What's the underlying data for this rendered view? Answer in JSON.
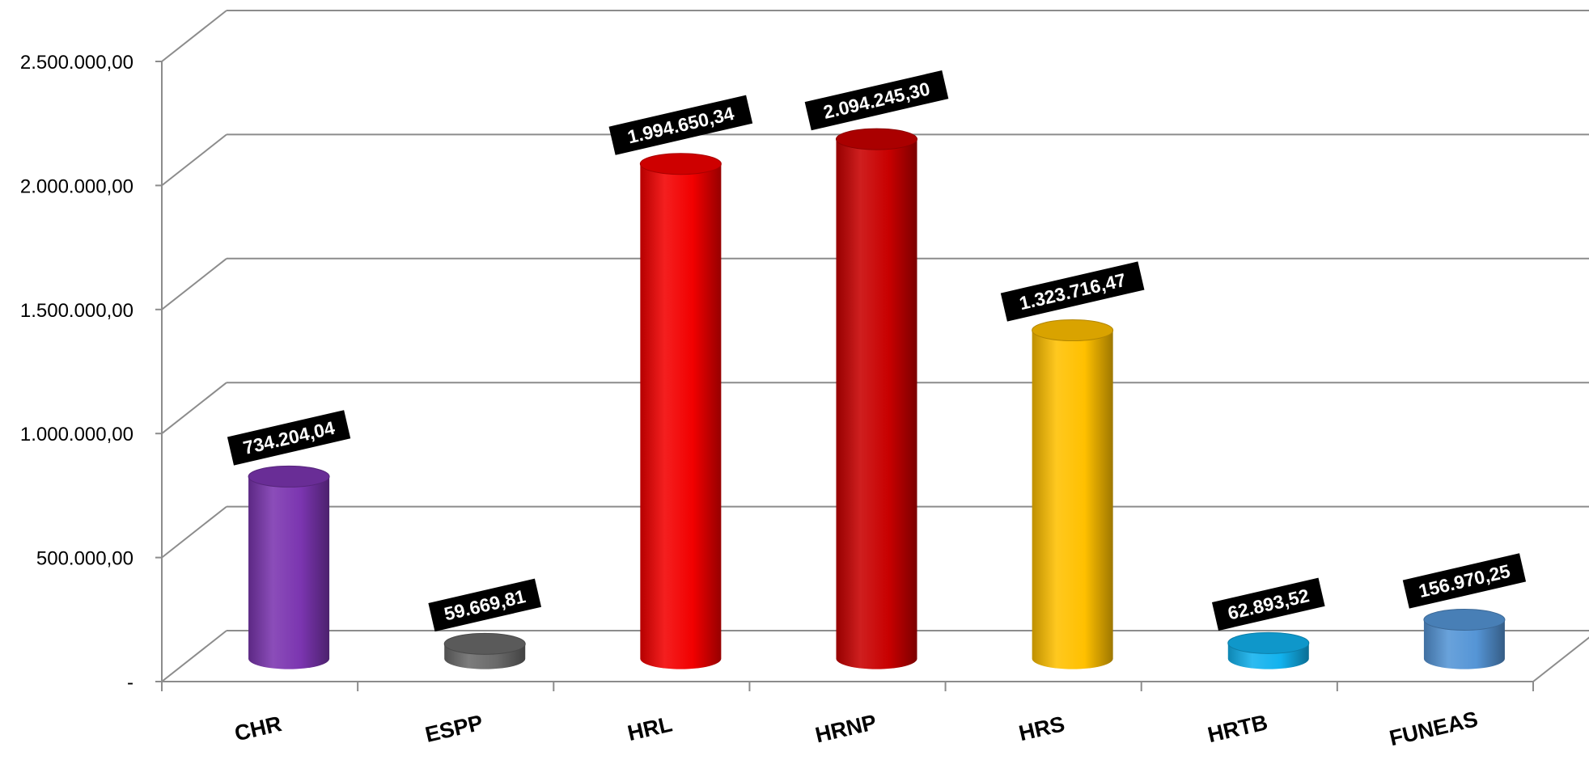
{
  "chart_data": {
    "type": "bar",
    "categories": [
      "CHR",
      "ESPP",
      "HRL",
      "HRNP",
      "HRS",
      "HRTB",
      "FUNEAS"
    ],
    "values": [
      734204.04,
      59669.81,
      1994650.34,
      2094245.3,
      1323716.47,
      62893.52,
      156970.25
    ],
    "data_labels": [
      "734.204,04",
      "59.669,81",
      "1.994.650,34",
      "2.094.245,30",
      "1.323.716,47",
      "62.893,52",
      "156.970,25"
    ],
    "colors": [
      "#7b35b0",
      "#6a6a6a",
      "#f20000",
      "#c80000",
      "#ffc000",
      "#12b2ee",
      "#5595d6"
    ],
    "y_ticks": [
      {
        "value": 0,
        "label": "-"
      },
      {
        "value": 500000,
        "label": "500.000,00"
      },
      {
        "value": 1000000,
        "label": "1.000.000,00"
      },
      {
        "value": 1500000,
        "label": "1.500.000,00"
      },
      {
        "value": 2000000,
        "label": "2.000.000,00"
      },
      {
        "value": 2500000,
        "label": "2.500.000,00"
      }
    ],
    "ylim": [
      0,
      2500000
    ],
    "title": "",
    "xlabel": "",
    "ylabel": "",
    "grid": true,
    "legend": "none",
    "style": "3d-cylinder"
  }
}
